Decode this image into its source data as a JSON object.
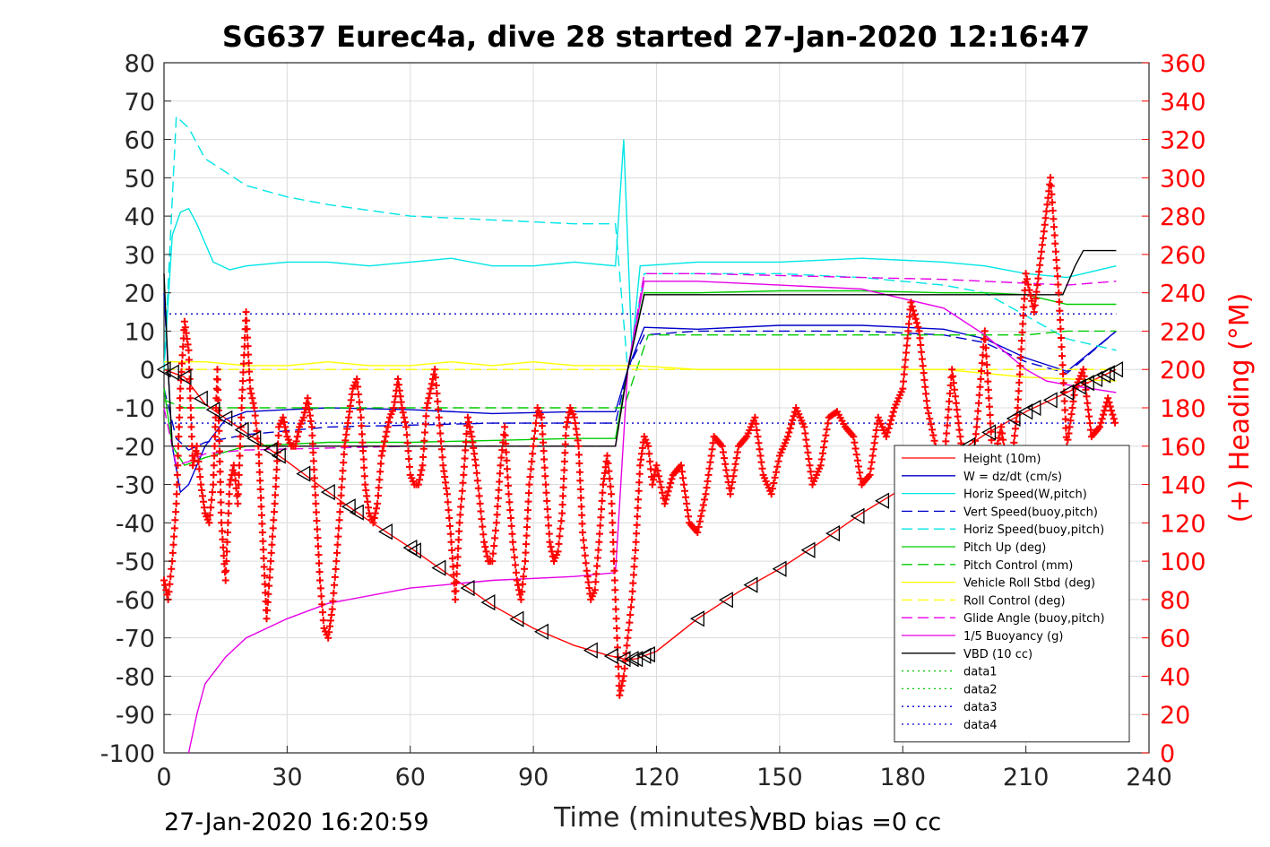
{
  "chart_data": {
    "type": "line",
    "title": "SG637 Eurec4a, dive 28 started 27-Jan-2020 12:16:47",
    "xlabel": "Time (minutes)",
    "ylabel_left": "",
    "ylabel_right": "(+) Heading (°M)",
    "xlim": [
      0,
      240
    ],
    "ylim_left": [
      -100,
      80
    ],
    "ylim_right": [
      0,
      360
    ],
    "xticks": [
      "0",
      "30",
      "60",
      "90",
      "120",
      "150",
      "180",
      "210",
      "240"
    ],
    "yticks_left": [
      "80",
      "70",
      "60",
      "50",
      "40",
      "30",
      "20",
      "10",
      "0",
      "-10",
      "-20",
      "-30",
      "-40",
      "-50",
      "-60",
      "-70",
      "-80",
      "-90",
      "-100"
    ],
    "yticks_right": [
      "360",
      "340",
      "320",
      "300",
      "280",
      "260",
      "240",
      "220",
      "200",
      "180",
      "160",
      "140",
      "120",
      "100",
      "80",
      "60",
      "40",
      "20",
      "0"
    ],
    "grid": true,
    "legend_position": "bottom-right",
    "footer_left": "27-Jan-2020 16:20:59",
    "footer_right": "VBD bias =0 cc",
    "series": [
      {
        "name": "Height (10m)",
        "color": "#ff0000",
        "style": "solid",
        "x": [
          0,
          5,
          10,
          20,
          30,
          40,
          50,
          60,
          70,
          80,
          90,
          100,
          108,
          112,
          115,
          120,
          130,
          140,
          150,
          160,
          170,
          180,
          190,
          200,
          210,
          220,
          232
        ],
        "y": [
          0,
          -2,
          -9,
          -16.5,
          -24,
          -32,
          -39.5,
          -46.5,
          -54,
          -61.5,
          -67.5,
          -72,
          -74.5,
          -75.5,
          -75.5,
          -73.5,
          -65,
          -58,
          -52,
          -45,
          -37.5,
          -31,
          -24,
          -17,
          -11,
          -6,
          0
        ]
      },
      {
        "name": "W = dz/dt (cm/s)",
        "color": "#0000cc",
        "style": "solid",
        "x": [
          0,
          2,
          4,
          6,
          10,
          15,
          20,
          30,
          40,
          60,
          80,
          100,
          110,
          113,
          117,
          130,
          150,
          170,
          190,
          200,
          210,
          220,
          232
        ],
        "y": [
          20,
          -20,
          -32,
          -30,
          -20,
          -13,
          -11,
          -10.5,
          -10,
          -10.5,
          -11.5,
          -11,
          -11,
          0,
          11,
          10.5,
          11.5,
          11.5,
          10.5,
          8,
          3,
          -0.5,
          10
        ]
      },
      {
        "name": "Horiz Speed(W,pitch)",
        "color": "#00e5e5",
        "style": "solid",
        "x": [
          0,
          2,
          4,
          6,
          8,
          12,
          16,
          20,
          30,
          40,
          50,
          60,
          70,
          80,
          90,
          100,
          110,
          112,
          114,
          116,
          130,
          150,
          170,
          190,
          200,
          210,
          220,
          232
        ],
        "y": [
          0,
          35,
          41,
          42,
          38,
          28,
          26,
          27,
          28,
          28,
          27,
          28,
          29,
          27,
          27,
          28,
          27,
          60,
          5,
          27,
          28,
          28,
          29,
          28,
          27,
          25,
          24,
          27
        ]
      },
      {
        "name": "Vert Speed(buoy,pitch)",
        "color": "#0000cc",
        "style": "dashed",
        "x": [
          0,
          3,
          6,
          10,
          20,
          40,
          60,
          80,
          100,
          110,
          113,
          117,
          130,
          150,
          170,
          190,
          200,
          210,
          220,
          232
        ],
        "y": [
          -5,
          -18,
          -21,
          -19,
          -17,
          -15,
          -14.5,
          -14,
          -14,
          -14,
          0,
          9,
          10,
          10,
          10,
          9,
          7,
          2,
          -1,
          10
        ]
      },
      {
        "name": "Horiz Speed(buoy,pitch)",
        "color": "#00e5e5",
        "style": "dashed",
        "x": [
          0,
          3,
          6,
          10,
          20,
          30,
          40,
          60,
          80,
          100,
          110,
          113,
          117,
          130,
          150,
          170,
          190,
          200,
          210,
          220,
          232
        ],
        "y": [
          0,
          66,
          63,
          55,
          48,
          45,
          43,
          40,
          39,
          38,
          38,
          0,
          25,
          25,
          25,
          24,
          22,
          20,
          14,
          8,
          5
        ]
      },
      {
        "name": "Pitch Up (deg)",
        "color": "#00cc00",
        "style": "solid",
        "x": [
          0,
          2,
          5,
          10,
          20,
          40,
          60,
          80,
          100,
          110,
          113,
          117,
          130,
          150,
          170,
          190,
          200,
          210,
          220,
          232
        ],
        "y": [
          -5,
          -20,
          -25,
          -23,
          -20,
          -19,
          -19,
          -18.5,
          -18,
          -18,
          0,
          20,
          20,
          20.5,
          20.5,
          20,
          20,
          19.5,
          17,
          17
        ]
      },
      {
        "name": "Pitch Control (mm)",
        "color": "#00cc00",
        "style": "dashed",
        "x": [
          0,
          5,
          10,
          112,
          118,
          210,
          220,
          232
        ],
        "y": [
          -8,
          -10,
          -10,
          -10,
          9,
          9,
          10,
          10
        ]
      },
      {
        "name": "Vehicle Roll Stbd (deg)",
        "color": "#ffff00",
        "style": "solid",
        "x": [
          0,
          10,
          20,
          30,
          40,
          50,
          60,
          70,
          80,
          90,
          100,
          110,
          115,
          130,
          150,
          170,
          190,
          210,
          232
        ],
        "y": [
          2,
          2,
          1,
          1,
          2,
          1,
          1,
          2,
          1,
          2,
          1,
          1,
          1,
          0,
          0,
          0,
          0,
          -2,
          -3
        ]
      },
      {
        "name": "Roll Control (deg)",
        "color": "#ffff00",
        "style": "dashed",
        "x": [
          0,
          110,
          115,
          232
        ],
        "y": [
          0,
          0,
          0,
          0
        ]
      },
      {
        "name": "Glide Angle (buoy,pitch)",
        "color": "#e600e6",
        "style": "dashed",
        "x": [
          0,
          3,
          6,
          10,
          20,
          40,
          60,
          80,
          100,
          110,
          113,
          117,
          130,
          150,
          170,
          190,
          200,
          210,
          220,
          232
        ],
        "y": [
          -10,
          -25,
          -24,
          -22,
          -21,
          -20.5,
          -20,
          -20,
          -20,
          -20,
          0,
          25,
          25,
          24.5,
          24,
          23.5,
          23,
          22.5,
          22,
          23
        ]
      },
      {
        "name": "1/5 Buoyancy (g)",
        "color": "#e600e6",
        "style": "solid",
        "x": [
          6,
          8,
          10,
          15,
          20,
          30,
          40,
          60,
          80,
          100,
          110,
          113,
          117,
          130,
          150,
          170,
          190,
          200,
          210,
          215,
          220,
          232
        ],
        "y": [
          -100,
          -90,
          -82,
          -75,
          -70,
          -65,
          -61,
          -57,
          -55,
          -54,
          -53,
          0,
          23,
          23,
          22,
          21,
          16,
          9,
          0,
          -3,
          -4,
          -6
        ]
      },
      {
        "name": "VBD (10 cc)",
        "color": "#000000",
        "style": "solid",
        "x": [
          0,
          1,
          2,
          110,
          113,
          117,
          219,
          220,
          222,
          224,
          232
        ],
        "y": [
          25,
          0,
          -20,
          -20,
          0,
          19.5,
          19.5,
          22,
          27,
          31,
          31
        ]
      },
      {
        "name": "data1",
        "color": "#00cc00",
        "style": "dotted",
        "x": [],
        "y": []
      },
      {
        "name": "data2",
        "color": "#00cc00",
        "style": "dotted",
        "x": [],
        "y": []
      },
      {
        "name": "data3",
        "color": "#0000cc",
        "style": "dotted",
        "x": [
          0,
          232
        ],
        "y": [
          14.5,
          14.5
        ]
      },
      {
        "name": "data4",
        "color": "#0000cc",
        "style": "dotted",
        "x": [
          0,
          232
        ],
        "y": [
          -14,
          -14
        ]
      }
    ],
    "heading_series": {
      "name": "(+) Heading (°M)",
      "color": "#ff0000",
      "marker": "+",
      "x": [
        0,
        1,
        2,
        3,
        4,
        5,
        6,
        7,
        8,
        9,
        10,
        11,
        12,
        13,
        14,
        15,
        16,
        17,
        18,
        19,
        20,
        21,
        22,
        23,
        24,
        25,
        26,
        27,
        28,
        29,
        30,
        31,
        32,
        33,
        34,
        35,
        36,
        37,
        38,
        39,
        40,
        41,
        42,
        43,
        44,
        45,
        46,
        47,
        48,
        49,
        50,
        51,
        52,
        53,
        54,
        55,
        56,
        57,
        58,
        59,
        60,
        61,
        62,
        63,
        64,
        65,
        66,
        67,
        68,
        69,
        70,
        71,
        72,
        73,
        74,
        75,
        76,
        77,
        78,
        79,
        80,
        81,
        82,
        83,
        84,
        85,
        86,
        87,
        88,
        89,
        90,
        91,
        92,
        93,
        94,
        95,
        96,
        97,
        98,
        99,
        100,
        101,
        102,
        103,
        104,
        105,
        106,
        107,
        108,
        109,
        110,
        111,
        112,
        113,
        114,
        115,
        116,
        117,
        118,
        119,
        120,
        122,
        124,
        126,
        128,
        130,
        132,
        134,
        136,
        138,
        140,
        142,
        144,
        146,
        148,
        150,
        152,
        154,
        156,
        158,
        160,
        162,
        164,
        166,
        168,
        170,
        172,
        174,
        176,
        178,
        180,
        182,
        184,
        186,
        188,
        190,
        192,
        194,
        196,
        198,
        200,
        202,
        204,
        206,
        208,
        210,
        212,
        214,
        216,
        218,
        220,
        222,
        224,
        226,
        228,
        230,
        232
      ],
      "y": [
        90,
        80,
        100,
        130,
        190,
        225,
        210,
        150,
        160,
        140,
        125,
        120,
        140,
        200,
        120,
        90,
        140,
        150,
        130,
        185,
        230,
        190,
        180,
        160,
        115,
        70,
        100,
        130,
        170,
        175,
        165,
        160,
        160,
        170,
        175,
        185,
        170,
        130,
        90,
        65,
        60,
        75,
        100,
        130,
        160,
        175,
        190,
        195,
        175,
        140,
        125,
        120,
        130,
        155,
        165,
        175,
        180,
        195,
        180,
        170,
        145,
        140,
        140,
        150,
        180,
        190,
        200,
        175,
        150,
        135,
        110,
        80,
        120,
        145,
        175,
        165,
        150,
        130,
        110,
        100,
        100,
        120,
        150,
        170,
        135,
        110,
        90,
        80,
        100,
        140,
        160,
        180,
        175,
        140,
        110,
        100,
        105,
        125,
        170,
        180,
        175,
        160,
        115,
        95,
        80,
        85,
        110,
        140,
        155,
        135,
        80,
        30,
        40,
        60,
        80,
        110,
        150,
        165,
        160,
        140,
        150,
        130,
        145,
        150,
        120,
        115,
        135,
        165,
        160,
        135,
        160,
        165,
        175,
        145,
        135,
        155,
        165,
        180,
        170,
        140,
        150,
        175,
        178,
        170,
        165,
        140,
        145,
        175,
        165,
        180,
        190,
        235,
        220,
        180,
        160,
        150,
        200,
        165,
        130,
        170,
        220,
        150,
        170,
        140,
        180,
        250,
        230,
        265,
        300,
        240,
        160,
        190,
        200,
        165,
        170,
        185,
        170
      ]
    },
    "depth_markers": {
      "description": "triangle markers along Height series",
      "x": [
        0,
        2,
        5,
        9,
        12,
        15,
        19,
        22,
        26,
        28,
        34,
        40,
        45,
        47,
        54,
        60,
        61,
        67,
        74,
        79,
        86,
        92,
        104,
        109,
        112,
        114,
        115,
        117,
        118,
        130,
        137,
        143,
        150,
        157,
        163,
        169,
        175,
        182,
        188,
        196,
        201,
        207,
        210,
        212,
        216,
        220,
        223,
        225,
        227,
        229,
        230,
        232
      ]
    },
    "legend": [
      "Height (10m)",
      "W = dz/dt (cm/s)",
      "Horiz Speed(W,pitch)",
      "Vert Speed(buoy,pitch)",
      "Horiz Speed(buoy,pitch)",
      "Pitch Up (deg)",
      "Pitch Control (mm)",
      "Vehicle Roll Stbd (deg)",
      "Roll Control (deg)",
      "Glide Angle (buoy,pitch)",
      "1/5 Buoyancy (g)",
      "VBD (10 cc)",
      "data1",
      "data2",
      "data3",
      "data4"
    ]
  }
}
